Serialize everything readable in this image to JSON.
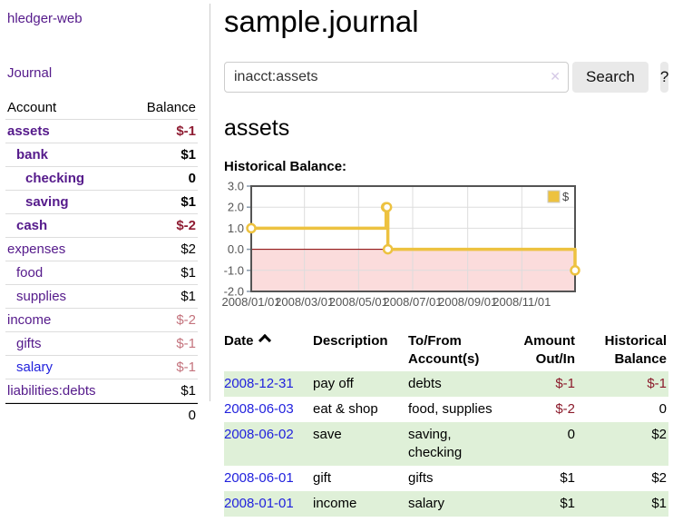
{
  "colors": {
    "link_visited_purple": "#551a8b",
    "link_unvisited_blue": "#2222dd",
    "negative_strong_red": "#8f1d33",
    "negative_soft_rose": "#c4737d",
    "table_negative_red": "#8b1a2b",
    "row_stripe_green": "#dff0d8",
    "chart_line_gold": "#EDC240",
    "chart_negative_fill_pink": "#fbdcdc",
    "chart_zero_line_red": "#8b0000",
    "chart_border_gray": "#545454",
    "chart_grid_gray": "#dddddd"
  },
  "sidebar": {
    "brand": "hledger-web",
    "nav": {
      "journal": "Journal"
    },
    "table": {
      "account_header": "Account",
      "balance_header": "Balance",
      "rows": [
        {
          "account": "assets",
          "balance": "$-1",
          "indent": 0,
          "bold": true,
          "balance_tone": "negative-strong",
          "link_tone": "visited"
        },
        {
          "account": "bank",
          "balance": "$1",
          "indent": 1,
          "bold": true,
          "balance_tone": "normal",
          "link_tone": "visited"
        },
        {
          "account": "checking",
          "balance": "0",
          "indent": 2,
          "bold": true,
          "balance_tone": "normal",
          "link_tone": "visited"
        },
        {
          "account": "saving",
          "balance": "$1",
          "indent": 2,
          "bold": true,
          "balance_tone": "normal",
          "link_tone": "visited"
        },
        {
          "account": "cash",
          "balance": "$-2",
          "indent": 1,
          "bold": true,
          "balance_tone": "negative-strong",
          "link_tone": "visited"
        },
        {
          "account": "expenses",
          "balance": "$2",
          "indent": 0,
          "bold": false,
          "balance_tone": "normal",
          "link_tone": "visited"
        },
        {
          "account": "food",
          "balance": "$1",
          "indent": 1,
          "bold": false,
          "balance_tone": "normal",
          "link_tone": "visited"
        },
        {
          "account": "supplies",
          "balance": "$1",
          "indent": 1,
          "bold": false,
          "balance_tone": "normal",
          "link_tone": "visited"
        },
        {
          "account": "income",
          "balance": "$-2",
          "indent": 0,
          "bold": false,
          "balance_tone": "negative-soft",
          "link_tone": "visited"
        },
        {
          "account": "gifts",
          "balance": "$-1",
          "indent": 1,
          "bold": false,
          "balance_tone": "negative-soft",
          "link_tone": "visited"
        },
        {
          "account": "salary",
          "balance": "$-1",
          "indent": 1,
          "bold": false,
          "balance_tone": "negative-soft",
          "link_tone": "unvisited"
        },
        {
          "account": "liabilities:debts",
          "balance": "$1",
          "indent": 0,
          "bold": false,
          "balance_tone": "normal",
          "link_tone": "visited"
        }
      ],
      "total": "0"
    }
  },
  "main": {
    "title": "sample.journal",
    "search": {
      "value": "inacct:assets",
      "clear_icon": "✕",
      "search_button": "Search",
      "help_button": "?"
    },
    "account_heading": "assets",
    "chart_title": "Historical Balance:"
  },
  "chart_data": {
    "type": "line",
    "title": "Historical Balance:",
    "step": true,
    "x_range": [
      "2008-01-01",
      "2008-12-31"
    ],
    "x_ticks": [
      {
        "label": "2008/01/01",
        "date": "2008-01-01"
      },
      {
        "label": "2008/03/01",
        "date": "2008-03-01"
      },
      {
        "label": "2008/05/01",
        "date": "2008-05-01"
      },
      {
        "label": "2008/07/01",
        "date": "2008-07-01"
      },
      {
        "label": "2008/09/01",
        "date": "2008-09-01"
      },
      {
        "label": "2008/11/01",
        "date": "2008-11-01"
      }
    ],
    "y_ticks": [
      "3.0",
      "2.0",
      "1.0",
      "0.0",
      "-1.0",
      "-2.0"
    ],
    "ylim": [
      -2,
      3
    ],
    "series": [
      {
        "name": "$",
        "color": "#EDC240",
        "points": [
          [
            "2008-01-01",
            1
          ],
          [
            "2008-06-01",
            2
          ],
          [
            "2008-06-02",
            2
          ],
          [
            "2008-06-03",
            0
          ],
          [
            "2008-12-31",
            -1
          ]
        ]
      }
    ],
    "legend": {
      "label": "$",
      "position": "top-right"
    },
    "grid": true
  },
  "register": {
    "headers": [
      "Date",
      "Description",
      "To/From Account(s)",
      "Amount Out/In",
      "Historical Balance"
    ],
    "sort_column": "Date",
    "sort_icon": "chevron-up",
    "rows": [
      {
        "date": "2008-12-31",
        "description": "pay off",
        "accounts": "debts",
        "amount": "$-1",
        "amount_negative": true,
        "balance": "$-1",
        "balance_negative": true
      },
      {
        "date": "2008-06-03",
        "description": "eat & shop",
        "accounts": "food, supplies",
        "amount": "$-2",
        "amount_negative": true,
        "balance": "0",
        "balance_negative": false
      },
      {
        "date": "2008-06-02",
        "description": "save",
        "accounts": "saving, checking",
        "amount": "0",
        "amount_negative": false,
        "balance": "$2",
        "balance_negative": false
      },
      {
        "date": "2008-06-01",
        "description": "gift",
        "accounts": "gifts",
        "amount": "$1",
        "amount_negative": false,
        "balance": "$2",
        "balance_negative": false
      },
      {
        "date": "2008-01-01",
        "description": "income",
        "accounts": "salary",
        "amount": "$1",
        "amount_negative": false,
        "balance": "$1",
        "balance_negative": false
      }
    ]
  }
}
